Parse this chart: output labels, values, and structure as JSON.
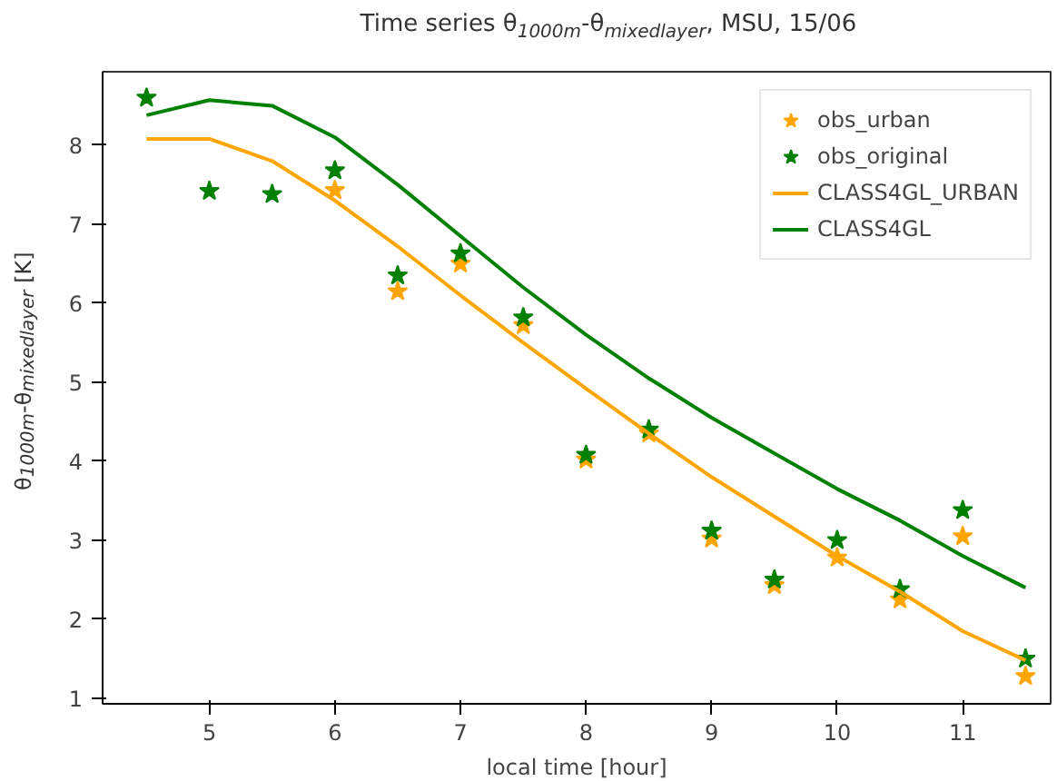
{
  "chart_data": {
    "type": "scatter",
    "title": "Time series θ$_{1000m}$-θ$_{mixedlayer}$, MSU, 15/06",
    "xlabel": "local time [hour]",
    "ylabel": "θ$_{1000m}$-θ$_{mixedlayer}$ [K]",
    "x": [
      4.5,
      5,
      5.5,
      6,
      6.5,
      7,
      7.5,
      8,
      8.5,
      9,
      9.5,
      10,
      10.5,
      11,
      11.5
    ],
    "series": [
      {
        "name": "obs_urban",
        "color": "#ffa500",
        "marker": "star",
        "values": [
          null,
          null,
          null,
          7.43,
          6.15,
          6.5,
          5.72,
          4.02,
          4.35,
          3.02,
          2.43,
          2.78,
          2.25,
          3.05,
          1.28
        ]
      },
      {
        "name": "obs_original",
        "color": "#008000",
        "marker": "star",
        "values": [
          8.6,
          7.42,
          7.38,
          7.68,
          6.35,
          6.63,
          5.82,
          4.08,
          4.4,
          3.12,
          2.5,
          3.0,
          2.38,
          3.38,
          1.5
        ]
      },
      {
        "name": "CLASS4GL_URBAN",
        "color": "#ffa500",
        "type": "line",
        "line_style": "solid",
        "values": [
          8.08,
          8.08,
          7.8,
          7.3,
          6.72,
          6.1,
          5.5,
          4.92,
          4.35,
          3.8,
          3.3,
          2.8,
          2.35,
          1.85,
          1.48
        ]
      },
      {
        "name": "CLASS4GL",
        "color": "#008000",
        "type": "line",
        "line_style": "solid",
        "values": [
          8.38,
          8.57,
          8.5,
          8.1,
          7.5,
          6.85,
          6.2,
          5.6,
          5.05,
          4.55,
          4.1,
          3.65,
          3.25,
          2.8,
          2.4
        ]
      }
    ],
    "xlim": [
      4.15,
      11.7
    ],
    "ylim": [
      0.93,
      8.93
    ],
    "xticks": [
      5,
      6,
      7,
      8,
      9,
      10,
      11
    ],
    "yticks": [
      1,
      2,
      3,
      4,
      5,
      6,
      7,
      8
    ],
    "grid": false,
    "legend": "top right"
  }
}
